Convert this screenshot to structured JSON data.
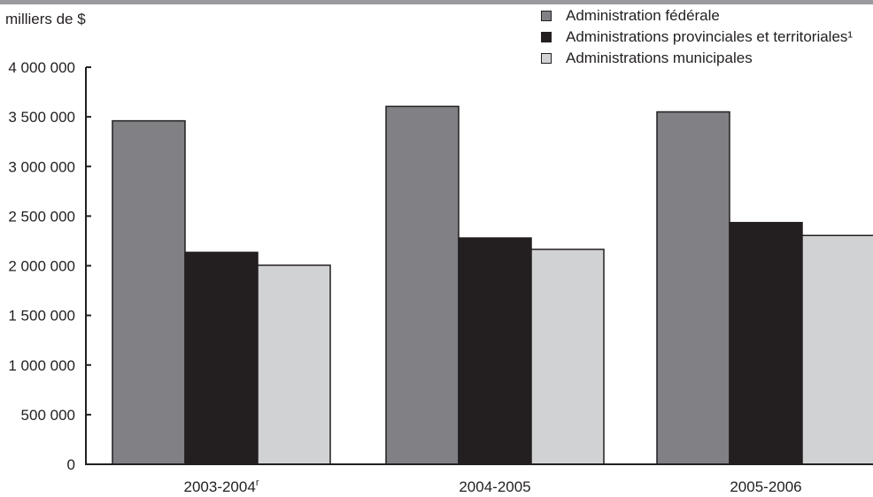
{
  "chart_data": {
    "type": "bar",
    "title": "",
    "unit_label": "milliers de $",
    "xlabel": "",
    "ylabel": "",
    "categories": [
      "2003-2004",
      "2004-2005",
      "2005-2006"
    ],
    "category_superscripts": [
      "r",
      "",
      ""
    ],
    "series": [
      {
        "name": "Administration fédérale",
        "values": [
          3460000,
          3605000,
          3550000
        ]
      },
      {
        "name": "Administrations provinciales et territoriales¹",
        "values": [
          2135000,
          2280000,
          2435000
        ]
      },
      {
        "name": "Administrations municipales",
        "values": [
          2005000,
          2165000,
          2305000
        ]
      }
    ],
    "ylim": [
      0,
      4000000
    ],
    "yticks": [
      0,
      500000,
      1000000,
      1500000,
      2000000,
      2500000,
      3000000,
      3500000,
      4000000
    ],
    "ytick_labels": [
      "0",
      "500 000",
      "1 000 000",
      "1 500 000",
      "2 000 000",
      "2 500 000",
      "3 000 000",
      "3 500 000",
      "4 000 000"
    ],
    "grid": false,
    "legend_position": "top-right",
    "colors": [
      "#808085",
      "#231f20",
      "#d1d2d4"
    ],
    "axis_color": "#231f20",
    "top_rule_color": "#9a9a9e"
  }
}
